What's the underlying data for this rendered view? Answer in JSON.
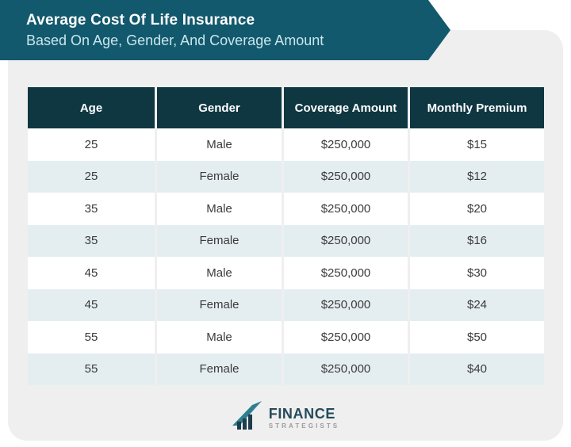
{
  "banner": {
    "title": "Average Cost Of Life Insurance",
    "subtitle": "Based On Age, Gender, And Coverage Amount"
  },
  "table": {
    "headers": [
      "Age",
      "Gender",
      "Coverage Amount",
      "Monthly Premium"
    ],
    "rows": [
      [
        "25",
        "Male",
        "$250,000",
        "$15"
      ],
      [
        "25",
        "Female",
        "$250,000",
        "$12"
      ],
      [
        "35",
        "Male",
        "$250,000",
        "$20"
      ],
      [
        "35",
        "Female",
        "$250,000",
        "$16"
      ],
      [
        "45",
        "Male",
        "$250,000",
        "$30"
      ],
      [
        "45",
        "Female",
        "$250,000",
        "$24"
      ],
      [
        "55",
        "Male",
        "$250,000",
        "$50"
      ],
      [
        "55",
        "Female",
        "$250,000",
        "$40"
      ]
    ]
  },
  "logo": {
    "name": "FINANCE",
    "sub": "STRATEGISTS",
    "icon": "bar-chart-swoosh-icon"
  },
  "colors": {
    "banner_teal": "#13596d",
    "header_dark_teal": "#0e3742",
    "alt_row_blue": "#e4eef1",
    "card_grey": "#efefef",
    "subtitle_cyan": "#c9e6ec",
    "row_text": "#3b3b3b",
    "logo_navy": "#254b5a",
    "logo_grey": "#9b9b9b"
  },
  "chart_data": {
    "type": "table",
    "title": "Average Cost Of Life Insurance Based On Age, Gender, And Coverage Amount",
    "columns": [
      "Age",
      "Gender",
      "Coverage Amount",
      "Monthly Premium"
    ],
    "rows": [
      {
        "age": 25,
        "gender": "Male",
        "coverage_amount": 250000,
        "monthly_premium": 15
      },
      {
        "age": 25,
        "gender": "Female",
        "coverage_amount": 250000,
        "monthly_premium": 12
      },
      {
        "age": 35,
        "gender": "Male",
        "coverage_amount": 250000,
        "monthly_premium": 20
      },
      {
        "age": 35,
        "gender": "Female",
        "coverage_amount": 250000,
        "monthly_premium": 16
      },
      {
        "age": 45,
        "gender": "Male",
        "coverage_amount": 250000,
        "monthly_premium": 30
      },
      {
        "age": 45,
        "gender": "Female",
        "coverage_amount": 250000,
        "monthly_premium": 24
      },
      {
        "age": 55,
        "gender": "Male",
        "coverage_amount": 250000,
        "monthly_premium": 50
      },
      {
        "age": 55,
        "gender": "Female",
        "coverage_amount": 250000,
        "monthly_premium": 40
      }
    ]
  }
}
